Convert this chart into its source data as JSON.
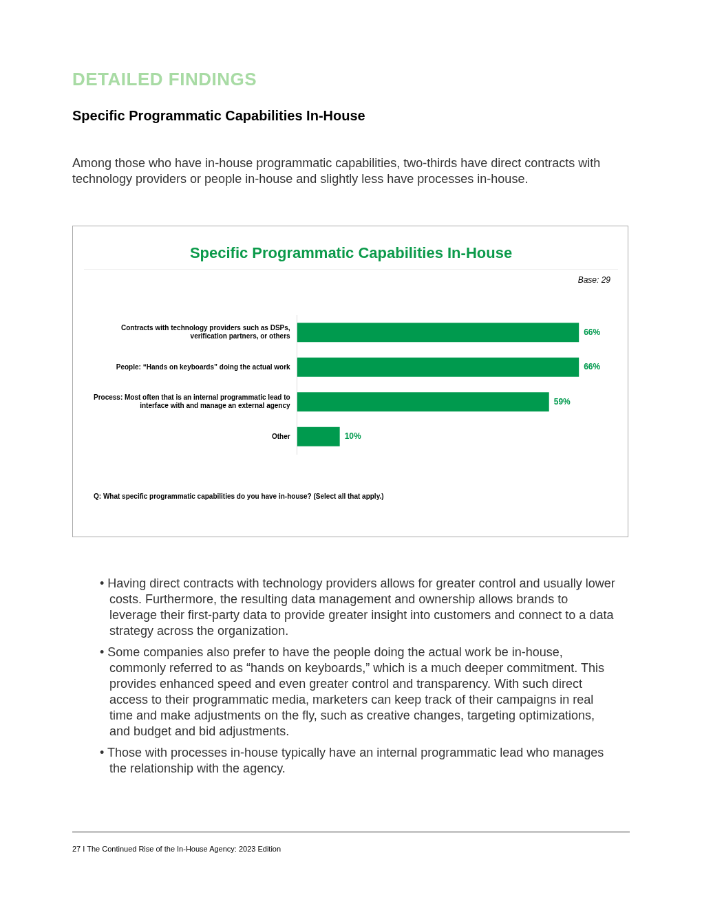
{
  "chart_data": {
    "type": "bar",
    "orientation": "horizontal",
    "title": "Specific Programmatic Capabilities In-House",
    "categories": [
      "Contracts with technology providers such as DSPs, verification partners, or others",
      "People: “Hands on keyboards” doing the actual work",
      "Process: Most often that is an internal programmatic lead to interface with and manage an external agency",
      "Other"
    ],
    "values": [
      66,
      66,
      59,
      10
    ],
    "value_labels": [
      "66%",
      "66%",
      "59%",
      "10%"
    ],
    "color": "#009a4e",
    "grid": false,
    "legend": false,
    "annotations": [
      "DETAILED FINDINGS",
      "Specific Programmatic Capabilities In-House",
      "Among those who have in-house programmatic capabilities, two-thirds have direct contracts with technology providers or people in-house and slightly less have processes in-house.",
      "Base: 29",
      "Q: What specific programmatic capabilities do you have in-house? (Select all that apply.)",
      "• Having direct contracts with technology providers allows for greater control and usually lower costs. Furthermore, the resulting data management and ownership allows brands to leverage their first-party data to provide greater insight into customers and connect to a data strategy across the organization.",
      "• Some companies also prefer to have the people doing the actual work be in-house, commonly referred to as “hands on keyboards,” which is a much deeper commitment. This provides enhanced speed and even greater control and transparency. With such direct access to their programmatic media, marketers can keep track of their campaigns in real time and make adjustments on the fly, such as creative changes, targeting optimizations, and budget and bid adjustments.",
      "• Those with processes in-house typically have an internal programmatic lead who manages the relationship with the agency.",
      "27  I  The Continued Rise of the In-House Agency: 2023 Edition"
    ]
  }
}
